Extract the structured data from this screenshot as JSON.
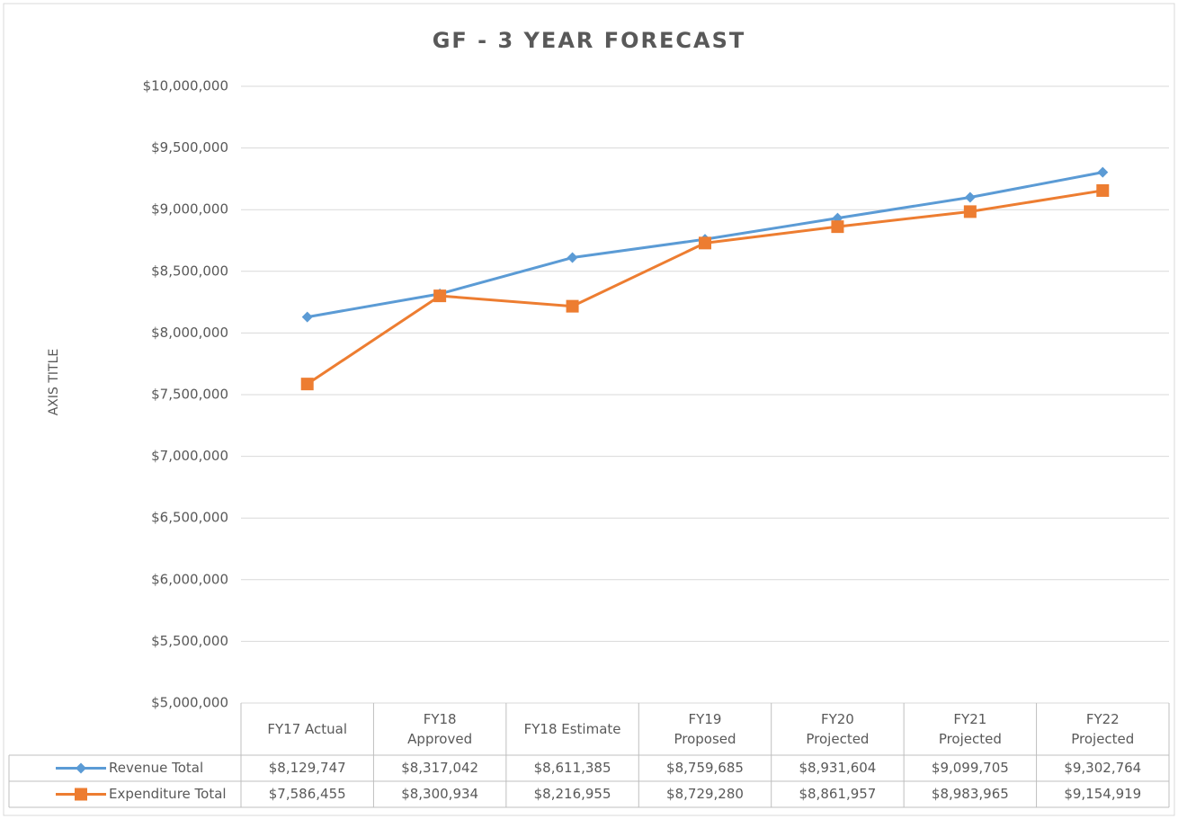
{
  "chart_data": {
    "type": "line",
    "title": "GF - 3 YEAR FORECAST",
    "y_label": "AXIS TITLE",
    "categories": [
      "FY17 Actual",
      "FY18\nApproved",
      "FY18 Estimate",
      "FY19\nProposed",
      "FY20\nProjected",
      "FY21\nProjected",
      "FY22\nProjected"
    ],
    "series": [
      {
        "name": "Revenue Total",
        "color": "#5b9bd5",
        "marker": "diamond",
        "values": [
          8129747,
          8317042,
          8611385,
          8759685,
          8931604,
          9099705,
          9302764
        ],
        "value_labels": [
          "$8,129,747",
          "$8,317,042",
          "$8,611,385",
          "$8,759,685",
          "$8,931,604",
          "$9,099,705",
          "$9,302,764"
        ]
      },
      {
        "name": "Expenditure Total",
        "color": "#ed7d31",
        "marker": "square",
        "values": [
          7586455,
          8300934,
          8216955,
          8729280,
          8861957,
          8983965,
          9154919
        ],
        "value_labels": [
          "$7,586,455",
          "$8,300,934",
          "$8,216,955",
          "$8,729,280",
          "$8,861,957",
          "$8,983,965",
          "$9,154,919"
        ]
      }
    ],
    "ylim": [
      5000000,
      10000000
    ],
    "yticks": [
      {
        "value": 5000000,
        "label": "$5,000,000"
      },
      {
        "value": 5500000,
        "label": "$5,500,000"
      },
      {
        "value": 6000000,
        "label": "$6,000,000"
      },
      {
        "value": 6500000,
        "label": "$6,500,000"
      },
      {
        "value": 7000000,
        "label": "$7,000,000"
      },
      {
        "value": 7500000,
        "label": "$7,500,000"
      },
      {
        "value": 8000000,
        "label": "$8,000,000"
      },
      {
        "value": 8500000,
        "label": "$8,500,000"
      },
      {
        "value": 9000000,
        "label": "$9,000,000"
      },
      {
        "value": 9500000,
        "label": "$9,500,000"
      },
      {
        "value": 10000000,
        "label": "$10,000,000"
      }
    ],
    "grid": true,
    "data_table": true
  }
}
